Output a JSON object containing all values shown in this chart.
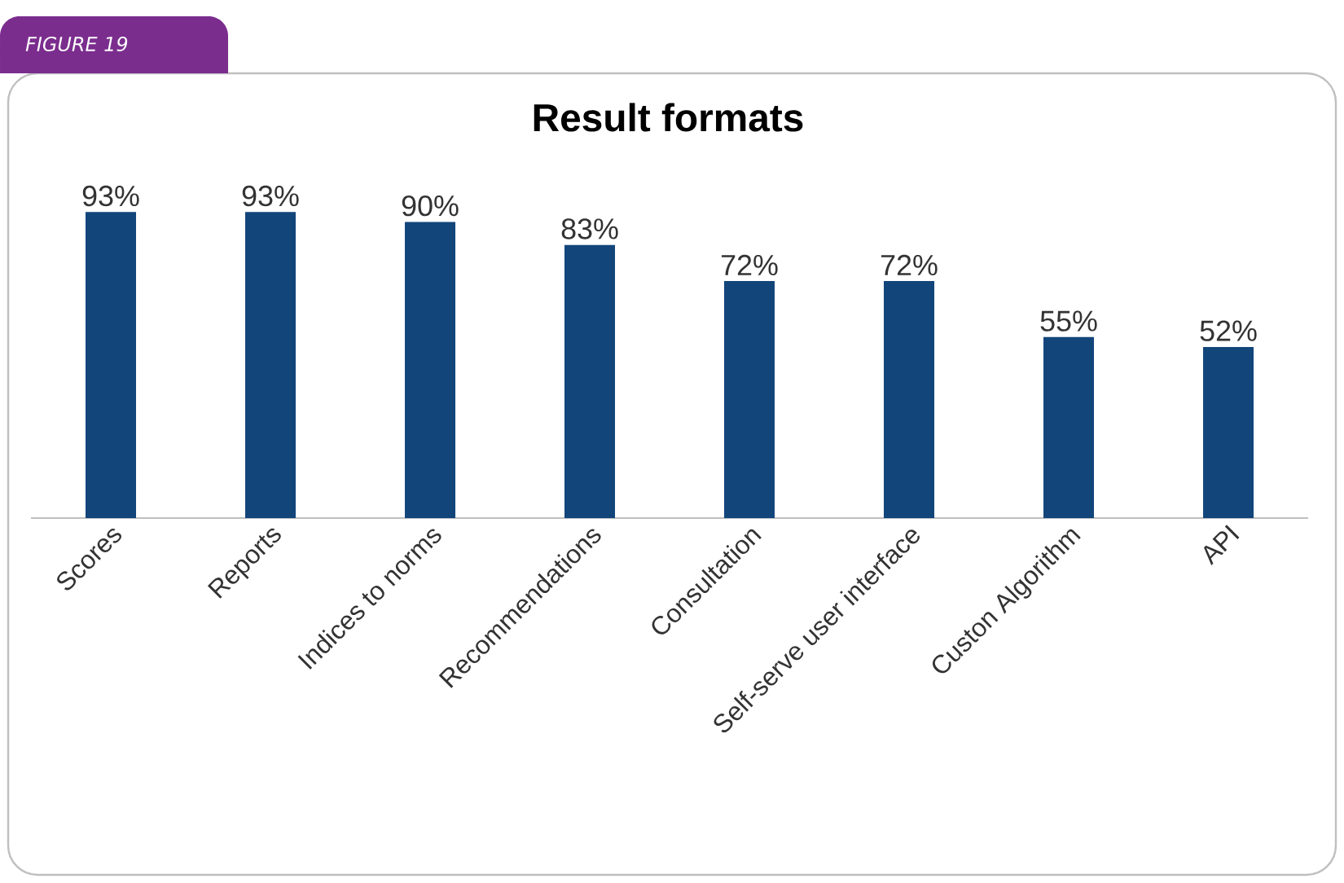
{
  "chart_data": {
    "type": "bar",
    "title": "Result formats",
    "categories": [
      "Scores",
      "Reports",
      "Indices to norms",
      "Recommendations",
      "Consultation",
      "Self-serve user interface",
      "Custon Algorithm",
      "API"
    ],
    "values": [
      93,
      93,
      90,
      83,
      72,
      72,
      55,
      52
    ],
    "value_labels": [
      "93%",
      "93%",
      "90%",
      "83%",
      "72%",
      "72%",
      "55%",
      "52%"
    ],
    "color": "#12457a",
    "tick_labels": "x",
    "annotations": [
      "FIGURE 19"
    ]
  }
}
